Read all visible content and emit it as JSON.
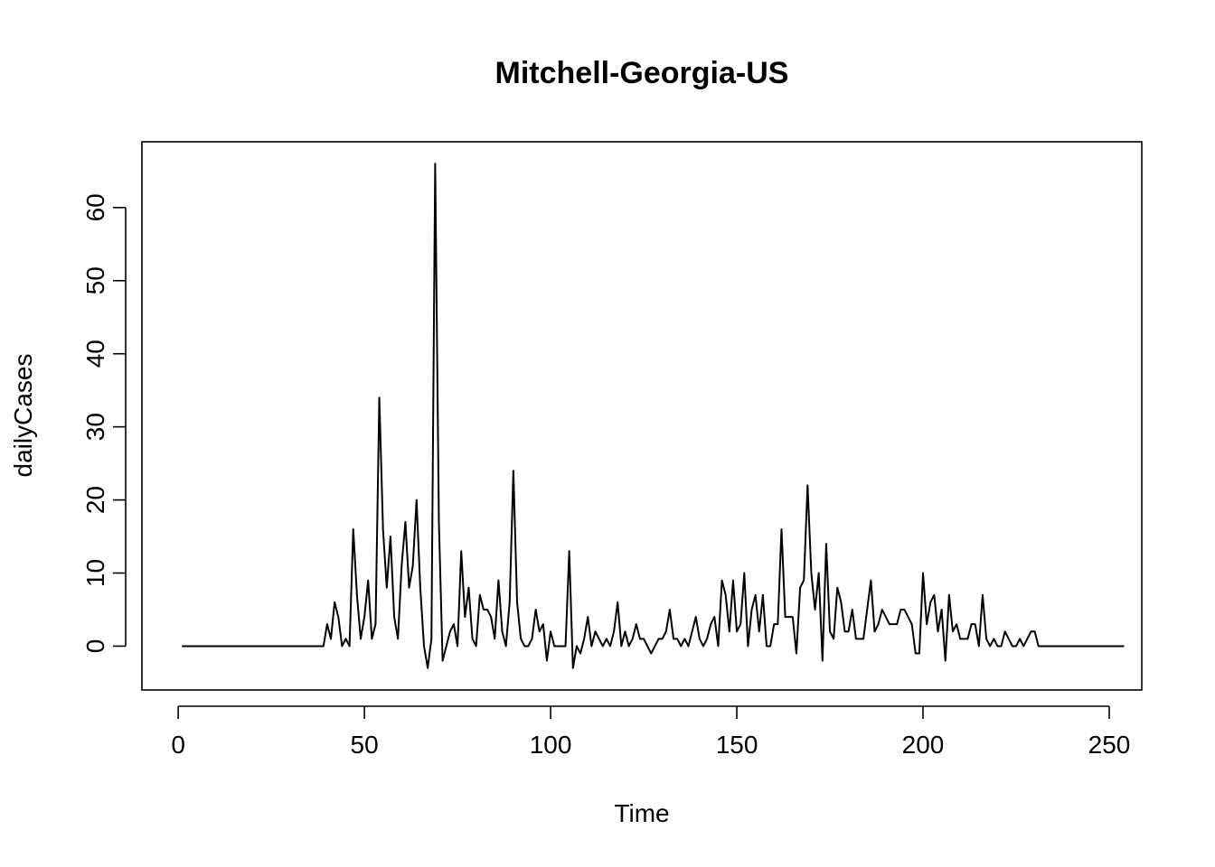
{
  "chart_data": {
    "type": "line",
    "title": "Mitchell-Georgia-US",
    "xlabel": "Time",
    "ylabel": "dailyCases",
    "xlim": [
      1,
      248
    ],
    "ylim": [
      -3,
      66
    ],
    "x_ticks": [
      0,
      50,
      100,
      150,
      200,
      250
    ],
    "y_ticks": [
      0,
      10,
      20,
      30,
      40,
      50,
      60
    ],
    "grid": false,
    "legend": "none",
    "line_color": "#000000",
    "x_start": 1,
    "series": [
      {
        "values": [
          0,
          0,
          0,
          0,
          0,
          0,
          0,
          0,
          0,
          0,
          0,
          0,
          0,
          0,
          0,
          0,
          0,
          0,
          0,
          0,
          0,
          0,
          0,
          0,
          0,
          0,
          0,
          0,
          0,
          0,
          0,
          0,
          0,
          0,
          0,
          0,
          0,
          0,
          0,
          3,
          1,
          6,
          4,
          0,
          1,
          0,
          16,
          7,
          1,
          4,
          9,
          1,
          3,
          34,
          16,
          8,
          15,
          4,
          1,
          11,
          17,
          8,
          11,
          20,
          8,
          0,
          -3,
          1,
          66,
          17,
          -2,
          0,
          2,
          3,
          0,
          13,
          4,
          8,
          1,
          0,
          7,
          5,
          5,
          4,
          1,
          9,
          2,
          0,
          6,
          24,
          6,
          1,
          0,
          0,
          1,
          5,
          2,
          3,
          -2,
          2,
          0,
          0,
          0,
          0,
          13,
          -3,
          0,
          -1,
          1,
          4,
          0,
          2,
          1,
          0,
          1,
          0,
          2,
          6,
          0,
          2,
          0,
          1,
          3,
          1,
          1,
          0,
          -1,
          0,
          1,
          1,
          2,
          5,
          1,
          1,
          0,
          1,
          0,
          2,
          4,
          1,
          0,
          1,
          3,
          4,
          0,
          9,
          7,
          2,
          9,
          2,
          3,
          10,
          0,
          5,
          7,
          2,
          7,
          0,
          0,
          3,
          3,
          16,
          4,
          4,
          4,
          -1,
          8,
          9,
          22,
          10,
          5,
          10,
          -2,
          14,
          2,
          1,
          8,
          6,
          2,
          2,
          5,
          1,
          1,
          1,
          5,
          9,
          2,
          3,
          5,
          4,
          3,
          3,
          3,
          5,
          5,
          4,
          3,
          -1,
          -1,
          10,
          3,
          6,
          7,
          2,
          5,
          -2,
          7,
          2,
          3,
          1,
          1,
          1,
          3,
          3,
          0,
          7,
          1,
          0,
          1,
          0,
          0,
          2,
          1,
          0,
          0,
          1,
          0,
          1,
          2,
          2,
          0,
          0,
          0,
          0,
          0,
          0,
          0,
          0,
          0,
          0,
          0,
          0,
          0,
          0,
          0,
          0,
          0,
          0,
          0,
          0,
          0,
          0,
          0,
          0
        ]
      }
    ]
  }
}
